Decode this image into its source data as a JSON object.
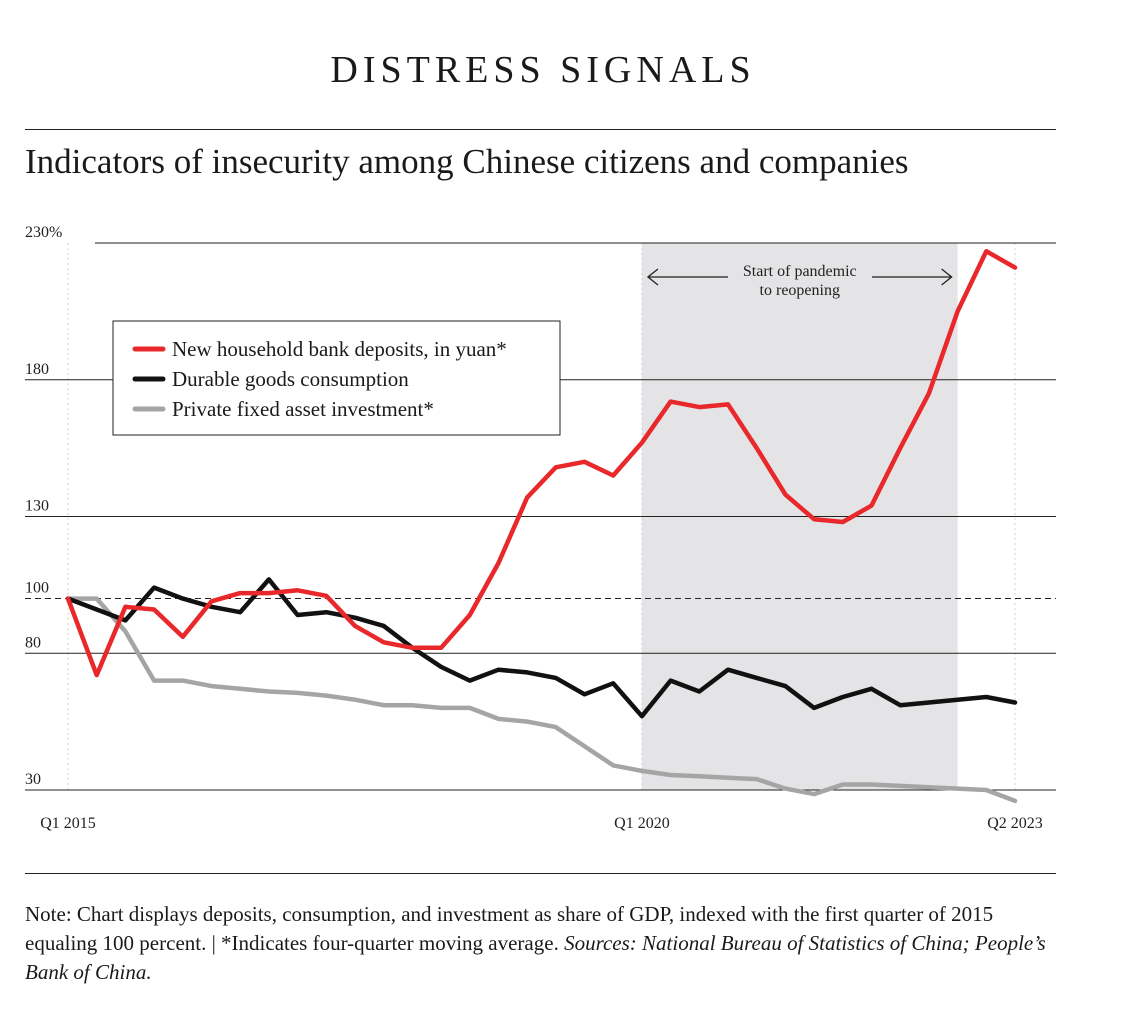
{
  "header": {
    "kicker": "DISTRESS SIGNALS",
    "subtitle": "Indicators of insecurity among Chinese citizens and companies"
  },
  "chart_data": {
    "type": "line",
    "y_ticks": [
      {
        "value": 230,
        "label": "230%"
      },
      {
        "value": 180,
        "label": "180"
      },
      {
        "value": 130,
        "label": "130"
      },
      {
        "value": 100,
        "label": "100"
      },
      {
        "value": 80,
        "label": "80"
      },
      {
        "value": 30,
        "label": "30"
      }
    ],
    "ylim": [
      30,
      230
    ],
    "baseline": 100,
    "x_ticks": [
      {
        "index": 0,
        "label": "Q1 2015"
      },
      {
        "index": 20,
        "label": "Q1 2020"
      },
      {
        "index": 33,
        "label": "Q2 2023"
      }
    ],
    "x_count": 34,
    "shaded_range": {
      "start": 20,
      "end": 31,
      "label_line1": "Start of pandemic",
      "label_line2": "to reopening"
    },
    "series": [
      {
        "name": "New household bank deposits, in yuan*",
        "color": "#e8282a",
        "values": [
          100,
          72,
          97,
          96,
          86,
          99,
          102,
          102,
          103,
          101,
          90,
          84,
          82,
          82,
          94,
          113,
          137,
          148,
          150,
          145,
          157,
          172,
          170,
          171,
          155,
          138,
          129,
          128,
          134,
          155,
          175,
          205,
          227,
          221
        ]
      },
      {
        "name": "Durable goods consumption",
        "color": "#111111",
        "values": [
          100,
          96,
          92,
          104,
          100,
          97,
          95,
          107,
          94,
          95,
          93,
          90,
          82,
          75,
          70,
          74,
          73,
          71,
          65,
          69,
          57,
          70,
          66,
          74,
          71,
          68,
          60,
          64,
          67,
          61,
          62,
          63,
          64,
          62
        ]
      },
      {
        "name": "Private fixed asset investment*",
        "color": "#a5a5a5",
        "values": [
          100,
          100,
          88,
          70,
          70,
          68,
          67,
          66,
          65.5,
          64.5,
          63,
          61,
          61,
          60,
          60,
          56,
          55,
          53,
          46,
          39,
          37,
          35.5,
          35,
          34.5,
          34,
          30.5,
          28.5,
          32,
          32,
          31.5,
          31,
          30.5,
          30,
          26
        ]
      }
    ]
  },
  "note": {
    "text": "Note: Chart displays deposits, consumption, and investment as share of GDP, indexed with the first quarter of 2015 equaling 100 percent. | *Indicates four-quarter moving average. ",
    "sources": "Sources: National Bureau of Statistics of China; People’s Bank of China."
  }
}
